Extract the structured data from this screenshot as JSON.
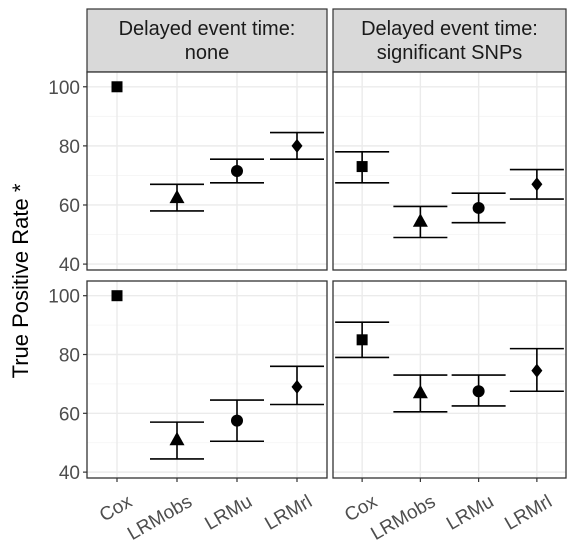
{
  "chart_data": {
    "type": "scatter",
    "ylabel": "True Positive Rate *",
    "xlabel": "",
    "ylim": [
      38,
      105
    ],
    "yticks": [
      40,
      60,
      80,
      100
    ],
    "categories": [
      "Cox",
      "LRMobs",
      "LRMu",
      "LRMrl"
    ],
    "grid": true,
    "legend": "none",
    "colors": {
      "panel_border": "#333333",
      "strip_fill": "#d9d9d9",
      "grid": "#ebebeb",
      "marks": "#000000"
    },
    "markers": {
      "Cox": "square",
      "LRMobs": "triangle",
      "LRMu": "circle",
      "LRMrl": "diamond"
    },
    "strips": {
      "left": [
        "Delayed event time:",
        "none"
      ],
      "right": [
        "Delayed event time:",
        "significant SNPs"
      ]
    },
    "panels": [
      {
        "row": 0,
        "col": 0,
        "points": [
          {
            "category": "Cox",
            "y": 100
          },
          {
            "category": "LRMobs",
            "y": 62.5,
            "lower": 58,
            "upper": 67
          },
          {
            "category": "LRMu",
            "y": 71.5,
            "lower": 67.5,
            "upper": 75.5
          },
          {
            "category": "LRMrl",
            "y": 80,
            "lower": 75.5,
            "upper": 84.5
          }
        ]
      },
      {
        "row": 0,
        "col": 1,
        "points": [
          {
            "category": "Cox",
            "y": 73,
            "lower": 67.5,
            "upper": 78
          },
          {
            "category": "LRMobs",
            "y": 54.5,
            "lower": 49,
            "upper": 59.5
          },
          {
            "category": "LRMu",
            "y": 59,
            "lower": 54,
            "upper": 64
          },
          {
            "category": "LRMrl",
            "y": 67,
            "lower": 62,
            "upper": 72
          }
        ]
      },
      {
        "row": 1,
        "col": 0,
        "points": [
          {
            "category": "Cox",
            "y": 100
          },
          {
            "category": "LRMobs",
            "y": 51,
            "lower": 44.5,
            "upper": 57
          },
          {
            "category": "LRMu",
            "y": 57.5,
            "lower": 50.5,
            "upper": 64.5
          },
          {
            "category": "LRMrl",
            "y": 69,
            "lower": 63,
            "upper": 76
          }
        ]
      },
      {
        "row": 1,
        "col": 1,
        "points": [
          {
            "category": "Cox",
            "y": 85,
            "lower": 79,
            "upper": 91
          },
          {
            "category": "LRMobs",
            "y": 67,
            "lower": 60.5,
            "upper": 73
          },
          {
            "category": "LRMu",
            "y": 67.5,
            "lower": 62.5,
            "upper": 73
          },
          {
            "category": "LRMrl",
            "y": 74.5,
            "lower": 67.5,
            "upper": 82
          }
        ]
      }
    ]
  }
}
